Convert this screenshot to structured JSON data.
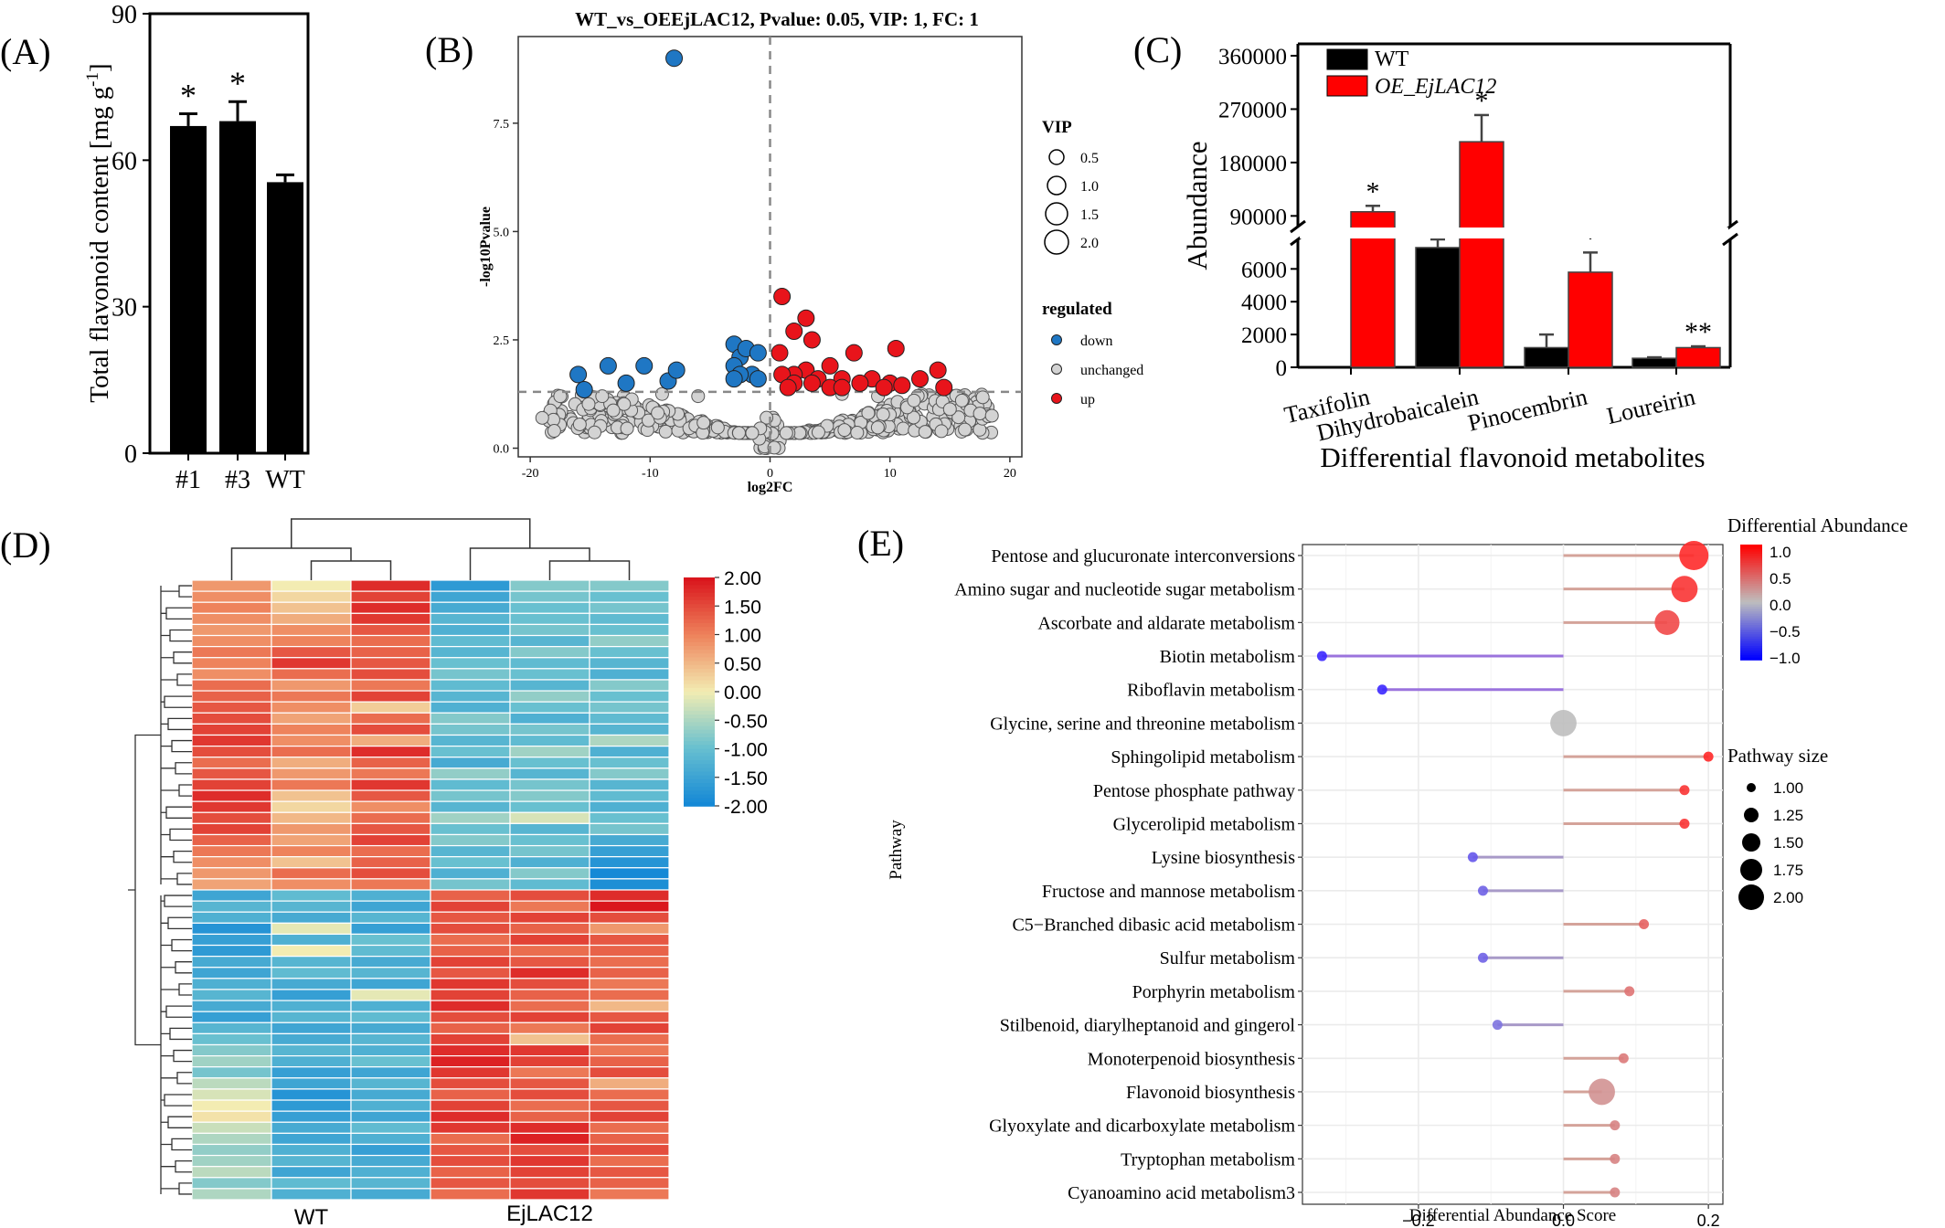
{
  "panels": {
    "A": "(A)",
    "B": "(B)",
    "C": "(C)",
    "D": "(D)",
    "E": "(E)"
  },
  "colors": {
    "bar": "#000000",
    "red": "#ff0000",
    "down": "#1f77c4",
    "up": "#e8141b",
    "unchanged": "#d3d3d3",
    "grid": "#ebebeb",
    "low": "#0000ff",
    "mid": "#bebebe",
    "high": "#ff0000"
  },
  "chart_data": [
    {
      "panel": "A",
      "type": "bar",
      "categories": [
        "#1",
        "#3",
        "WT"
      ],
      "values": [
        67,
        68,
        55.5
      ],
      "errors": [
        2.5,
        4,
        1.5
      ],
      "significance": [
        "*",
        "*",
        ""
      ],
      "ylabel": "Total flavonoid content [mg g-1]",
      "ylabel_main": "Total flavonoid content [mg g",
      "ylabel_sup": "-1",
      "ylabel_end": "]",
      "ylim": [
        0,
        90
      ],
      "yticks": [
        0,
        30,
        60,
        90
      ]
    },
    {
      "panel": "B",
      "type": "scatter",
      "title": "WT_vs_OEEjLAC12, Pvalue: 0.05, VIP: 1, FC: 1",
      "xlabel": "log2FC",
      "ylabel": "-log10Pvalue",
      "xlim": [
        -21,
        21
      ],
      "ylim": [
        -0.2,
        9.5
      ],
      "xticks": [
        -20,
        -10,
        0,
        10,
        20
      ],
      "yticks": [
        0,
        2.5,
        5,
        7.5
      ],
      "ytick_labels": [
        "0.0",
        "2.5",
        "5.0",
        "7.5"
      ],
      "thresholds": {
        "x": 0,
        "y": 1.3
      },
      "legend_vip": {
        "title": "VIP",
        "entries": [
          "0.5",
          "1.0",
          "1.5",
          "2.0"
        ]
      },
      "legend_reg": {
        "title": "regulated",
        "entries": [
          "down",
          "unchanged",
          "up"
        ]
      },
      "down_points": [
        [
          -8,
          9
        ],
        [
          -16,
          1.7
        ],
        [
          -13.5,
          1.9
        ],
        [
          -10.5,
          1.9
        ],
        [
          -15.5,
          1.35
        ],
        [
          -12,
          1.5
        ],
        [
          -8.5,
          1.55
        ],
        [
          -7.8,
          1.8
        ],
        [
          -3,
          2.4
        ],
        [
          -2.5,
          2.1
        ],
        [
          -2,
          2.3
        ],
        [
          -3,
          1.9
        ],
        [
          -1,
          2.2
        ],
        [
          -1.5,
          1.7
        ],
        [
          -2.5,
          1.7
        ],
        [
          -1,
          1.6
        ],
        [
          -3,
          1.6
        ]
      ],
      "up_points": [
        [
          1,
          3.5
        ],
        [
          3,
          3
        ],
        [
          2,
          2.7
        ],
        [
          3.5,
          2.5
        ],
        [
          0.8,
          2.2
        ],
        [
          10.5,
          2.3
        ],
        [
          14,
          1.8
        ],
        [
          3,
          1.8
        ],
        [
          2,
          1.7
        ],
        [
          7,
          2.2
        ],
        [
          1,
          1.7
        ],
        [
          5,
          1.9
        ],
        [
          4,
          1.6
        ],
        [
          6,
          1.6
        ],
        [
          8.5,
          1.6
        ],
        [
          12.5,
          1.6
        ],
        [
          14.5,
          1.4
        ],
        [
          7.5,
          1.5
        ],
        [
          10,
          1.5
        ],
        [
          5,
          1.4
        ],
        [
          3.5,
          1.5
        ],
        [
          2,
          1.5
        ],
        [
          6,
          1.4
        ],
        [
          11,
          1.45
        ],
        [
          9.5,
          1.4
        ],
        [
          1.5,
          1.4
        ]
      ]
    },
    {
      "panel": "C",
      "type": "bar",
      "xlabel": "Differential flavonoid metabolites",
      "ylabel": "Abundance",
      "categories": [
        "Taxifolin",
        "Dihydrobaicalein",
        "Pinocembrin",
        "Loureirin"
      ],
      "series": [
        {
          "name": "WT",
          "values": [
            0,
            7300,
            1200,
            550
          ],
          "errors": [
            0,
            500,
            800,
            60
          ]
        },
        {
          "name": "OE_EjLAC12",
          "values": [
            97000,
            215000,
            5800,
            1200
          ],
          "errors": [
            10000,
            45000,
            1200,
            80
          ]
        }
      ],
      "significance": [
        "*",
        "*",
        "*",
        "**"
      ],
      "yticks_low": [
        0,
        2000,
        4000,
        6000
      ],
      "yticks_high": [
        90000,
        180000,
        270000,
        360000
      ],
      "ylim_low": [
        0,
        7800
      ],
      "ylim_high": [
        72000,
        380000
      ]
    },
    {
      "panel": "D",
      "type": "heatmap",
      "xlabels": [
        "WT",
        "EjLAC12"
      ],
      "colorbar_ticks": [
        "2.00",
        "1.50",
        "1.00",
        "0.50",
        "0.00",
        "-0.50",
        "-1.00",
        "-1.50",
        "-2.00"
      ],
      "vmin": -2,
      "vmax": 2,
      "rows": 56,
      "cols": 6,
      "values": [
        [
          0.8,
          0,
          1.8,
          -1.7,
          -0.8,
          -0.8
        ],
        [
          0.9,
          0.2,
          1.6,
          -1.5,
          -0.9,
          -1
        ],
        [
          1,
          0.4,
          1.8,
          -1.4,
          -1,
          -0.9
        ],
        [
          0.9,
          0.6,
          1.7,
          -1.2,
          -1,
          -1.1
        ],
        [
          0.8,
          0.9,
          1.4,
          -1.3,
          -0.9,
          -1
        ],
        [
          0.9,
          1,
          1.2,
          -1.1,
          -1.2,
          -0.7
        ],
        [
          1.1,
          1.4,
          1.3,
          -1.2,
          -0.8,
          -1
        ],
        [
          1,
          1.7,
          1.4,
          -1,
          -1.1,
          -1.2
        ],
        [
          0.9,
          1.2,
          1.5,
          -0.9,
          -1,
          -1.3
        ],
        [
          1.2,
          0.8,
          1.1,
          -1.1,
          -1.2,
          -0.8
        ],
        [
          1.3,
          1.1,
          1.6,
          -1.2,
          -0.7,
          -1
        ],
        [
          1.4,
          0.9,
          0.3,
          -1.3,
          -1,
          -0.9
        ],
        [
          1.5,
          0.7,
          1.2,
          -0.8,
          -1.3,
          -1.1
        ],
        [
          1.6,
          1,
          1.5,
          -0.9,
          -0.9,
          -1.2
        ],
        [
          1.7,
          0.9,
          0.6,
          -1.2,
          -1.1,
          -0.5
        ],
        [
          1.5,
          1.2,
          1.8,
          -1,
          -0.6,
          -1.3
        ],
        [
          1.2,
          0.6,
          1.3,
          -1.4,
          -1,
          -1
        ],
        [
          1.4,
          0.8,
          1.1,
          -0.7,
          -1.2,
          -0.8
        ],
        [
          1.6,
          1.1,
          1.7,
          -1.1,
          -0.9,
          -1.2
        ],
        [
          1.8,
          0.4,
          1.4,
          -0.9,
          -0.8,
          -1.1
        ],
        [
          1.7,
          0.2,
          0.9,
          -1.2,
          -1,
          -1.3
        ],
        [
          1.5,
          0.5,
          1.2,
          -0.6,
          -0.2,
          -1
        ],
        [
          1.6,
          0.8,
          1.4,
          -1,
          -1.2,
          -0.9
        ],
        [
          1.3,
          0.7,
          1.6,
          -0.8,
          -1,
          -1.4
        ],
        [
          1.1,
          1,
          1.2,
          -1.2,
          -0.9,
          -1.6
        ],
        [
          0.9,
          0.4,
          1.3,
          -1,
          -1.3,
          -1.8
        ],
        [
          0.8,
          1.2,
          1.5,
          -1.3,
          -0.8,
          -2
        ],
        [
          0.7,
          0.9,
          1.1,
          -0.9,
          -1.1,
          -1.9
        ],
        [
          -1.5,
          -1.1,
          -1.3,
          1.3,
          1.5,
          1.8
        ],
        [
          -1.2,
          -1.2,
          -1.5,
          1.6,
          1.1,
          2
        ],
        [
          -1.3,
          -1.4,
          -1.2,
          1.4,
          1.6,
          1.5
        ],
        [
          -1.8,
          -0.1,
          -1.6,
          1.5,
          1.3,
          0.8
        ],
        [
          -1.6,
          -1.3,
          -1,
          1.2,
          1.6,
          1.4
        ],
        [
          -1.7,
          0,
          -1.1,
          1.3,
          1.2,
          1.3
        ],
        [
          -1.4,
          -1.2,
          -1.4,
          1.6,
          1.4,
          1.2
        ],
        [
          -1.5,
          -1.1,
          -1.2,
          1.4,
          1.8,
          1.3
        ],
        [
          -1.3,
          -1.4,
          -1.5,
          1.7,
          1.5,
          1.1
        ],
        [
          -1.2,
          -1.6,
          -0.1,
          1.6,
          1.3,
          1.2
        ],
        [
          -1.4,
          -1.3,
          -1.3,
          1.8,
          1.2,
          0.5
        ],
        [
          -1.6,
          -1.2,
          -1.1,
          1.5,
          1.6,
          1.4
        ],
        [
          -1.2,
          -1.5,
          -1.4,
          1.3,
          1.1,
          1.6
        ],
        [
          -1,
          -1.4,
          -1.2,
          1.6,
          0.4,
          1.2
        ],
        [
          -0.8,
          -1.2,
          -1.3,
          1.8,
          1.7,
          1.1
        ],
        [
          -0.6,
          -1.3,
          -1,
          1.9,
          1.6,
          1.3
        ],
        [
          -0.9,
          -1.6,
          -1.5,
          1.7,
          1.1,
          1.5
        ],
        [
          -0.4,
          -1.5,
          -1.2,
          1.5,
          1.4,
          0.6
        ],
        [
          -0.2,
          -1.8,
          -1.4,
          1.3,
          1.5,
          1.2
        ],
        [
          0,
          -1.7,
          -1.3,
          1.6,
          1.2,
          1.4
        ],
        [
          0.1,
          -1.6,
          -1.5,
          1.8,
          1.3,
          1.6
        ],
        [
          -0.3,
          -1.4,
          -1.1,
          1.7,
          1.8,
          1.2
        ],
        [
          -0.5,
          -1.5,
          -1.3,
          1.2,
          1.9,
          1.3
        ],
        [
          -0.7,
          -1.3,
          -1.6,
          1.4,
          1.5,
          1.5
        ],
        [
          -0.6,
          -1.2,
          -1.4,
          1.5,
          1.7,
          1.2
        ],
        [
          -0.4,
          -1.5,
          -1.3,
          1.3,
          1.6,
          1.4
        ],
        [
          -0.8,
          -1.1,
          -1.2,
          1.4,
          1.5,
          1.3
        ],
        [
          -0.5,
          -1.3,
          -1.4,
          1.2,
          1.7,
          1.1
        ]
      ]
    },
    {
      "panel": "E",
      "type": "scatter",
      "xlabel": "Differential Abundance Score",
      "ylabel": "Pathway",
      "xlim": [
        -0.36,
        0.22
      ],
      "xticks": [
        -0.2,
        0,
        0.2
      ],
      "xtick_labels": [
        "−0.2",
        "0.0",
        "0.2"
      ],
      "legend_color": {
        "title": "Differential Abundance",
        "labels": [
          "1.0",
          "0.5",
          "0.0",
          "−0.5",
          "−1.0"
        ]
      },
      "legend_size": {
        "title": "Pathway size",
        "entries": [
          "1.00",
          "1.25",
          "1.50",
          "1.75",
          "2.00"
        ]
      },
      "pathways": [
        {
          "name": "Pentose and glucuronate interconversions",
          "score": 0.18,
          "size": 2
        },
        {
          "name": "Amino sugar and nucleotide sugar metabolism",
          "score": 0.167,
          "size": 1.8
        },
        {
          "name": "Ascorbate and aldarate metabolism",
          "score": 0.143,
          "size": 1.7
        },
        {
          "name": "Biotin metabolism",
          "score": -0.333,
          "size": 1
        },
        {
          "name": "Riboflavin metabolism",
          "score": -0.25,
          "size": 1
        },
        {
          "name": "Glycine, serine and threonine metabolism",
          "score": 0,
          "size": 1.8
        },
        {
          "name": "Sphingolipid metabolism",
          "score": 0.2,
          "size": 1
        },
        {
          "name": "Pentose phosphate pathway",
          "score": 0.167,
          "size": 1
        },
        {
          "name": "Glycerolipid metabolism",
          "score": 0.167,
          "size": 1
        },
        {
          "name": "Lysine biosynthesis",
          "score": -0.125,
          "size": 1
        },
        {
          "name": "Fructose and mannose metabolism",
          "score": -0.111,
          "size": 1
        },
        {
          "name": "C5−Branched dibasic acid metabolism",
          "score": 0.111,
          "size": 1
        },
        {
          "name": "Sulfur metabolism",
          "score": -0.111,
          "size": 1
        },
        {
          "name": "Porphyrin metabolism",
          "score": 0.091,
          "size": 1
        },
        {
          "name": "Stilbenoid, diarylheptanoid and gingerol",
          "score": -0.091,
          "size": 1
        },
        {
          "name": "Monoterpenoid biosynthesis",
          "score": 0.083,
          "size": 1
        },
        {
          "name": "Flavonoid biosynthesis",
          "score": 0.053,
          "size": 1.8
        },
        {
          "name": "Glyoxylate and dicarboxylate metabolism",
          "score": 0.071,
          "size": 1
        },
        {
          "name": "Tryptophan metabolism",
          "score": 0.071,
          "size": 1
        },
        {
          "name": "Cyanoamino acid metabolism3",
          "score": 0.071,
          "size": 1
        }
      ]
    }
  ]
}
